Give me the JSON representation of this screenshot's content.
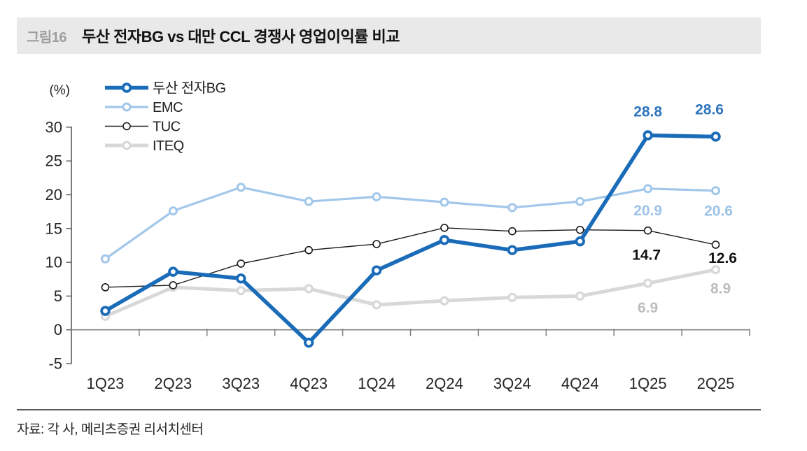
{
  "figure": {
    "tag": "그림16",
    "title": "두산 전자BG vs 대만 CCL 경쟁사 영업이익률 비교"
  },
  "source": "자료: 각 사, 메리츠증권 리서치센터",
  "chart_data": {
    "type": "line",
    "unit_label": "(%)",
    "categories": [
      "1Q23",
      "2Q23",
      "3Q23",
      "4Q23",
      "1Q24",
      "2Q24",
      "3Q24",
      "4Q24",
      "1Q25",
      "2Q25"
    ],
    "y_ticks": [
      30,
      25,
      20,
      15,
      10,
      5,
      0,
      -5
    ],
    "ylim": [
      -5,
      30
    ],
    "grid": false,
    "legend_position": "top-left",
    "axis_color": "#595959",
    "baseline_color": "#808080",
    "tick_label_color": "#262626",
    "legend_text_color": "#222222",
    "series": [
      {
        "id": "doosan-bg",
        "name": "두산 전자BG",
        "color": "#1b6cb8",
        "label_color": "#2e75bd",
        "line_width": 5.5,
        "marker_radius": 5.3,
        "marker_ring": 3.8,
        "z": 4,
        "values": [
          2.8,
          8.6,
          7.6,
          -1.9,
          8.8,
          13.3,
          11.8,
          13.1,
          28.8,
          28.6
        ],
        "point_labels": [
          {
            "index": 8,
            "text": "28.8",
            "dx": 0,
            "dy": -27
          },
          {
            "index": 9,
            "text": "28.6",
            "dx": -9,
            "dy": -32
          }
        ]
      },
      {
        "id": "emc",
        "name": "EMC",
        "color": "#a2c7ea",
        "label_color": "#9dc3e8",
        "line_width": 3.2,
        "marker_radius": 5.0,
        "marker_ring": 3.0,
        "z": 3,
        "values": [
          10.5,
          17.6,
          21.1,
          19.0,
          19.7,
          18.9,
          18.1,
          19.0,
          20.9,
          20.6
        ],
        "point_labels": [
          {
            "index": 8,
            "text": "20.9",
            "dx": 0,
            "dy": 38
          },
          {
            "index": 9,
            "text": "20.6",
            "dx": 4,
            "dy": 36
          }
        ]
      },
      {
        "id": "tuc",
        "name": "TUC",
        "color": "#1a1a1a",
        "label_color": "#111111",
        "line_width": 1.4,
        "marker_radius": 5.0,
        "marker_ring": 1.6,
        "z": 2,
        "values": [
          6.3,
          6.6,
          9.8,
          11.8,
          12.7,
          15.1,
          14.6,
          14.8,
          14.7,
          12.6
        ],
        "point_labels": [
          {
            "index": 8,
            "text": "14.7",
            "dx": -2,
            "dy": 42
          },
          {
            "index": 9,
            "text": "12.6",
            "dx": 10,
            "dy": 26
          }
        ]
      },
      {
        "id": "iteq",
        "name": "ITEQ",
        "color": "#d8d8d8",
        "label_color": "#bdbdbd",
        "line_width": 5.0,
        "marker_radius": 5.0,
        "marker_ring": 3.2,
        "z": 1,
        "values": [
          2.0,
          6.3,
          5.8,
          6.1,
          3.7,
          4.3,
          4.8,
          5.0,
          6.9,
          8.9
        ],
        "point_labels": [
          {
            "index": 8,
            "text": "6.9",
            "dx": 0,
            "dy": 42
          },
          {
            "index": 9,
            "text": "8.9",
            "dx": 7,
            "dy": 34
          }
        ]
      }
    ]
  }
}
